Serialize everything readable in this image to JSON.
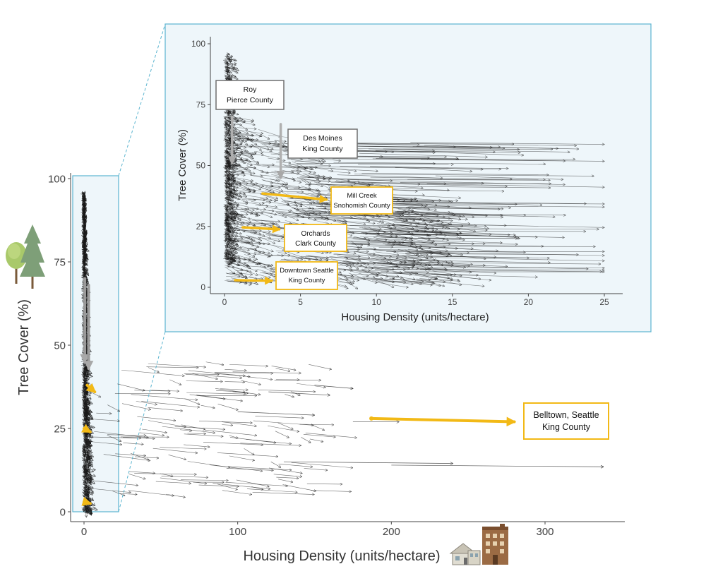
{
  "chart_data": [
    {
      "id": "main",
      "type": "vector-field",
      "xlabel": "Housing Density (units/hectare)",
      "ylabel": "Tree Cover (%)",
      "xlim": [
        -8,
        350
      ],
      "ylim": [
        -2,
        104
      ],
      "xticks": [
        0,
        100,
        200,
        300
      ],
      "yticks": [
        0,
        25,
        50,
        75,
        100
      ],
      "zoom_region": {
        "x": [
          -7,
          23
        ],
        "y": [
          0,
          100
        ]
      },
      "highlight_arrows": [
        {
          "name": "roy-pierce",
          "color": "#9a9a9a",
          "from": [
            0.5,
            70
          ],
          "to": [
            0.5,
            45
          ]
        },
        {
          "name": "des-moines-king",
          "color": "#9a9a9a",
          "from": [
            3,
            68
          ],
          "to": [
            3,
            43
          ]
        },
        {
          "name": "mill-creek-snohomish",
          "color": "#f2b916",
          "from": [
            2,
            38
          ],
          "to": [
            7,
            36
          ]
        },
        {
          "name": "orchards-clark",
          "color": "#f2b916",
          "from": [
            0,
            25
          ],
          "to": [
            4,
            24
          ]
        },
        {
          "name": "downtown-seattle-king",
          "color": "#f2b916",
          "from": [
            0,
            3
          ],
          "to": [
            4,
            2.5
          ]
        },
        {
          "name": "belltown-seattle-king",
          "color": "#f2b916",
          "from": [
            187,
            28
          ],
          "to": [
            280,
            27
          ]
        }
      ],
      "callouts": [
        {
          "name": "belltown",
          "title": "Belltown, Seattle",
          "subtitle": "King County",
          "border": "#f2b916"
        }
      ]
    },
    {
      "id": "inset",
      "type": "vector-field",
      "xlabel": "Housing Density (units/hectare)",
      "ylabel": "Tree Cover (%)",
      "xlim": [
        -1,
        26
      ],
      "ylim": [
        -3,
        102
      ],
      "xticks": [
        0,
        5,
        10,
        15,
        20,
        25
      ],
      "yticks": [
        0,
        25,
        50,
        75,
        100
      ],
      "highlight_arrows": [
        {
          "name": "roy-pierce",
          "color": "#b0b0b0",
          "from": [
            0.5,
            70
          ],
          "to": [
            0.5,
            51
          ]
        },
        {
          "name": "des-moines-king",
          "color": "#b0b0b0",
          "from": [
            3.7,
            67
          ],
          "to": [
            3.7,
            45
          ]
        },
        {
          "name": "mill-creek-snohomish",
          "color": "#f2b916",
          "from": [
            2.5,
            38.5
          ],
          "to": [
            6.7,
            36
          ]
        },
        {
          "name": "orchards-clark",
          "color": "#f2b916",
          "from": [
            1.2,
            24.6
          ],
          "to": [
            3.6,
            23.8
          ]
        },
        {
          "name": "downtown-seattle-king",
          "color": "#f2b916",
          "from": [
            0.7,
            2.9
          ],
          "to": [
            3.1,
            2.7
          ]
        }
      ],
      "callouts": [
        {
          "name": "roy",
          "title": "Roy",
          "subtitle": "Pierce County",
          "border": "#6e6e6e"
        },
        {
          "name": "des-moines",
          "title": "Des Moines",
          "subtitle": "King County",
          "border": "#6e6e6e"
        },
        {
          "name": "mill-creek",
          "title": "Mill Creek",
          "subtitle": "Snohomish County",
          "border": "#f2b916"
        },
        {
          "name": "orchards",
          "title": "Orchards",
          "subtitle": "Clark County",
          "border": "#f2b916"
        },
        {
          "name": "downtown-seattle",
          "title": "Downtown Seattle",
          "subtitle": "King County",
          "border": "#f2b916"
        }
      ]
    }
  ],
  "colors": {
    "arrow": "#1a1a1a",
    "highlight_gray": "#a8a8a8",
    "highlight_gold": "#f2b916",
    "inset_bg": "#eef6fa",
    "inset_border": "#5bb5d0",
    "axis": "#444444"
  },
  "icons": {
    "trees": "trees-icon",
    "house": "house-icon",
    "apartment": "apartment-building-icon"
  }
}
